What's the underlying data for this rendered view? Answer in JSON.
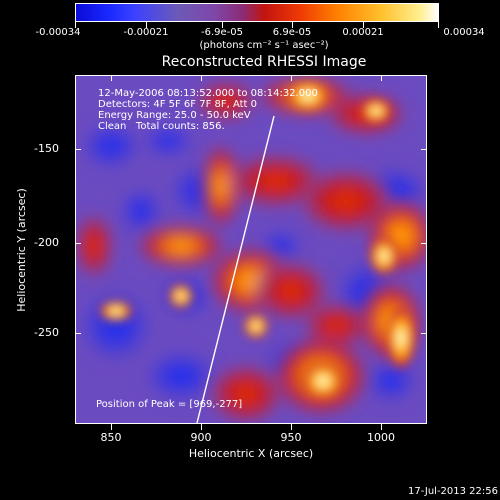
{
  "colorbar": {
    "ticks": [
      "-0.00034",
      "-0.00021",
      "-6.9e-05",
      "6.9e-05",
      "0.00021",
      "0.00034"
    ],
    "units": "(photons cm⁻² s⁻¹ asec⁻²)",
    "colors": [
      "#0b0bd8",
      "#6b5ab8",
      "#c2140f",
      "#ff7f00",
      "#ffbf2a",
      "#ffffff"
    ]
  },
  "title": "Reconstructed RHESSI Image",
  "overlay": {
    "line1": "12-May-2006 08:13:52.000 to 08:14:32.000",
    "line2": "Detectors: 4F 5F 6F 7F 8F, Att 0",
    "line3": "Energy Range: 25.0 - 50.0 keV",
    "line4": "Clean   Total counts: 856."
  },
  "peak": {
    "label": "Position of Peak = [969,-277]"
  },
  "axes": {
    "x": {
      "title": "Heliocentric X (arcsec)",
      "ticks": [
        "850",
        "900",
        "950",
        "1000"
      ],
      "range": [
        833,
        1025
      ]
    },
    "y": {
      "title": "Heliocentric Y (arcsec)",
      "ticks": [
        "-150",
        "-200",
        "-250"
      ],
      "range": [
        -300,
        -110
      ]
    }
  },
  "footer": {
    "timestamp": "17-Jul-2013 22:56"
  }
}
